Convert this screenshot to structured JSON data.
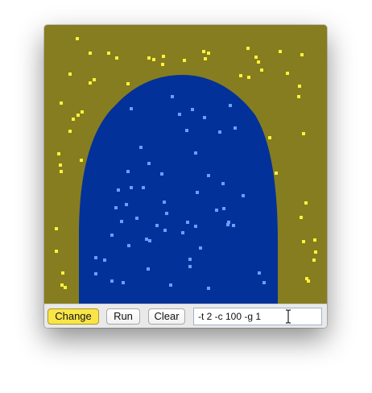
{
  "canvas": {
    "colors": {
      "background": "#867d20",
      "region": "#03319a",
      "outer_dots": "#fff23b",
      "inner_dots": "#6d9dff"
    }
  },
  "toolbar": {
    "change_label": "Change",
    "change_color": "#f9e548",
    "run_label": "Run",
    "clear_label": "Clear",
    "params_value": "-t 2 -c 100 -g 1"
  },
  "cursor": {
    "icon": "ibeam-cursor-icon"
  }
}
